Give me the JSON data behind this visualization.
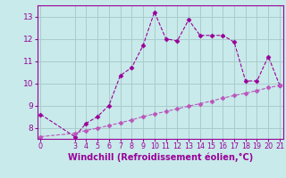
{
  "xlabel": "Windchill (Refroidissement éolien,°C)",
  "bg_color": "#c8eaea",
  "grid_color": "#aacccc",
  "line_color": "#990099",
  "line2_color": "#bb55bb",
  "x_main": [
    0,
    3,
    4,
    5,
    6,
    7,
    8,
    9,
    10,
    11,
    12,
    13,
    14,
    15,
    16,
    17,
    18,
    19,
    20,
    21
  ],
  "y_main": [
    8.6,
    7.6,
    8.2,
    8.5,
    9.0,
    10.35,
    10.7,
    11.7,
    13.2,
    12.0,
    11.9,
    12.85,
    12.15,
    12.15,
    12.15,
    11.85,
    10.1,
    10.1,
    11.2,
    9.9
  ],
  "x_line2": [
    0,
    3,
    4,
    5,
    6,
    7,
    8,
    9,
    10,
    11,
    12,
    13,
    14,
    15,
    16,
    17,
    18,
    19,
    20,
    21
  ],
  "y_line2": [
    7.6,
    7.75,
    7.88,
    7.98,
    8.1,
    8.22,
    8.35,
    8.5,
    8.62,
    8.73,
    8.85,
    8.97,
    9.08,
    9.2,
    9.33,
    9.45,
    9.55,
    9.67,
    9.8,
    9.9
  ],
  "ylim": [
    7.5,
    13.5
  ],
  "xlim": [
    -0.3,
    21.3
  ],
  "yticks": [
    8,
    9,
    10,
    11,
    12,
    13
  ],
  "xticks": [
    0,
    3,
    4,
    5,
    6,
    7,
    8,
    9,
    10,
    11,
    12,
    13,
    14,
    15,
    16,
    17,
    18,
    19,
    20,
    21
  ],
  "marker": "D",
  "marker_size": 2.5,
  "linewidth": 0.8,
  "tick_fontsize": 6.5,
  "xlabel_fontsize": 7.0
}
